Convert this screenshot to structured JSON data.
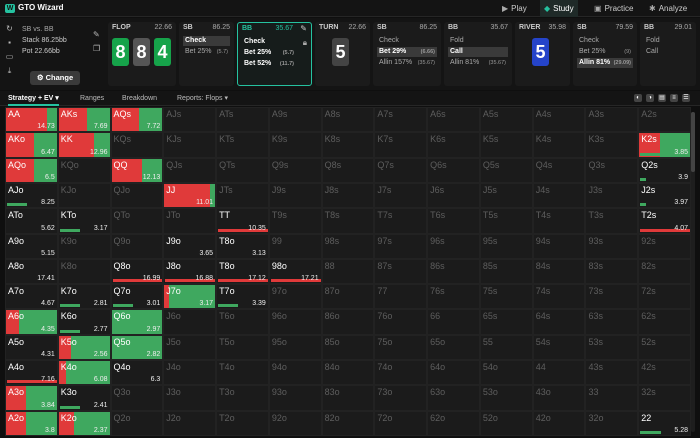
{
  "app": {
    "title": "GTO Wizard"
  },
  "nav": {
    "play": "Play",
    "study": "Study",
    "practice": "Practice",
    "analyze": "Analyze"
  },
  "player": {
    "line1": "SB vs. BB",
    "stack": "Stack 86.25bb",
    "pot": "Pot 22.66bb",
    "change": "Change"
  },
  "panels": {
    "flop": {
      "title": "FLOP",
      "pot": "22.66",
      "cards": [
        "8",
        "8",
        "4"
      ]
    },
    "sb1": {
      "title": "SB",
      "pot": "86.25",
      "actions": [
        {
          "label": "Check",
          "amt": ""
        },
        {
          "label": "Bet 25%",
          "amt": "(5.7)"
        }
      ]
    },
    "bb1": {
      "title": "BB",
      "pot": "35.67",
      "actions": [
        {
          "label": "Check",
          "amt": ""
        },
        {
          "label": "Bet 25%",
          "amt": "(5.7)"
        },
        {
          "label": "Bet 52%",
          "amt": "(11.7)"
        }
      ]
    },
    "turn": {
      "title": "TURN",
      "pot": "22.66",
      "card": "5"
    },
    "sb2": {
      "title": "SB",
      "pot": "86.25",
      "actions": [
        {
          "label": "Check",
          "amt": ""
        },
        {
          "label": "Bet 29%",
          "amt": "(6.66)"
        },
        {
          "label": "Allin 157%",
          "amt": "(35.67)"
        }
      ]
    },
    "bb2": {
      "title": "BB",
      "pot": "35.67",
      "actions": [
        {
          "label": "Fold",
          "amt": ""
        },
        {
          "label": "Call",
          "amt": ""
        },
        {
          "label": "Allin 81%",
          "amt": "(35.67)"
        }
      ]
    },
    "river": {
      "title": "RIVER",
      "pot": "35.98",
      "card": "5"
    },
    "sb3": {
      "title": "SB",
      "pot": "79.59",
      "actions": [
        {
          "label": "Check",
          "amt": ""
        },
        {
          "label": "Bet 25%",
          "amt": "(9)"
        },
        {
          "label": "Allin 81%",
          "amt": "(29.09)"
        }
      ]
    },
    "bb3": {
      "title": "BB",
      "pot": "29.01",
      "actions": [
        {
          "label": "Fold",
          "amt": ""
        },
        {
          "label": "Call",
          "amt": ""
        }
      ]
    }
  },
  "tabs": {
    "strategy": "Strategy + EV",
    "ranges": "Ranges",
    "breakdown": "Breakdown",
    "reports": "Reports: Flops"
  },
  "colors": {
    "red": "#e03a3a",
    "green": "#3fa85f",
    "accent": "#25c2a0"
  },
  "grid": {
    "rows": [
      [
        {
          "n": "AA",
          "v": "14.73",
          "r": 0.8,
          "g": 0.2,
          "b": 0
        },
        {
          "n": "AKs",
          "v": "7.69",
          "r": 0.55,
          "g": 0.45,
          "b": 0
        },
        {
          "n": "AQs",
          "v": "7.72",
          "r": 0.55,
          "g": 0.45,
          "b": 0
        },
        {
          "n": "AJs"
        },
        {
          "n": "ATs"
        },
        {
          "n": "A9s"
        },
        {
          "n": "A8s"
        },
        {
          "n": "A7s"
        },
        {
          "n": "A6s"
        },
        {
          "n": "A5s"
        },
        {
          "n": "A4s"
        },
        {
          "n": "A3s"
        },
        {
          "n": "A2s"
        }
      ],
      [
        {
          "n": "AKo",
          "v": "6.47",
          "r": 0.55,
          "g": 0.45,
          "b": 0
        },
        {
          "n": "KK",
          "v": "12.96",
          "r": 0.7,
          "g": 0.3,
          "b": 0
        },
        {
          "n": "KQs"
        },
        {
          "n": "KJs"
        },
        {
          "n": "KTs"
        },
        {
          "n": "K9s"
        },
        {
          "n": "K8s"
        },
        {
          "n": "K7s"
        },
        {
          "n": "K6s"
        },
        {
          "n": "K5s"
        },
        {
          "n": "K4s"
        },
        {
          "n": "K3s"
        },
        {
          "n": "K2s",
          "v": "3.85",
          "r": 0.4,
          "g": 0.6,
          "b": 1
        }
      ],
      [
        {
          "n": "AQo",
          "v": "6.5",
          "r": 0.55,
          "g": 0.45,
          "b": 0
        },
        {
          "n": "KQo"
        },
        {
          "n": "QQ",
          "v": "12.13",
          "r": 0.6,
          "g": 0.4,
          "b": 0
        },
        {
          "n": "QJs"
        },
        {
          "n": "QTs"
        },
        {
          "n": "Q9s"
        },
        {
          "n": "Q8s"
        },
        {
          "n": "Q7s"
        },
        {
          "n": "Q6s"
        },
        {
          "n": "Q5s"
        },
        {
          "n": "Q4s"
        },
        {
          "n": "Q3s"
        },
        {
          "n": "Q2s",
          "v": "3.9",
          "r": 0,
          "g": 0,
          "b": 0.3
        }
      ],
      [
        {
          "n": "AJo",
          "v": "8.25",
          "r": 0,
          "g": 0,
          "b": 1
        },
        {
          "n": "KJo"
        },
        {
          "n": "QJo"
        },
        {
          "n": "JJ",
          "v": "11.01",
          "r": 0.9,
          "g": 0.1,
          "b": 0
        },
        {
          "n": "JTs"
        },
        {
          "n": "J9s"
        },
        {
          "n": "J8s"
        },
        {
          "n": "J7s"
        },
        {
          "n": "J6s"
        },
        {
          "n": "J5s"
        },
        {
          "n": "J4s"
        },
        {
          "n": "J3s"
        },
        {
          "n": "J2s",
          "v": "3.97",
          "r": 0,
          "g": 0,
          "b": 0.3
        }
      ],
      [
        {
          "n": "ATo",
          "v": "5.62"
        },
        {
          "n": "KTo",
          "v": "3.17",
          "r": 0,
          "g": 0,
          "b": 1
        },
        {
          "n": "QTo"
        },
        {
          "n": "JTo"
        },
        {
          "n": "TT",
          "v": "10.35",
          "r": 0,
          "g": 0,
          "b": 1,
          "bc": "red"
        },
        {
          "n": "T9s"
        },
        {
          "n": "T8s"
        },
        {
          "n": "T7s"
        },
        {
          "n": "T6s"
        },
        {
          "n": "T5s"
        },
        {
          "n": "T4s"
        },
        {
          "n": "T3s"
        },
        {
          "n": "T2s",
          "v": "4.07",
          "r": 0,
          "g": 0,
          "b": 1,
          "bc": "red"
        }
      ],
      [
        {
          "n": "A9o",
          "v": "5.15"
        },
        {
          "n": "K9o"
        },
        {
          "n": "Q9o"
        },
        {
          "n": "J9o",
          "v": "3.65"
        },
        {
          "n": "T8o",
          "v": "3.13"
        },
        {
          "n": "99"
        },
        {
          "n": "98s"
        },
        {
          "n": "97s"
        },
        {
          "n": "96s"
        },
        {
          "n": "95s"
        },
        {
          "n": "94s"
        },
        {
          "n": "93s"
        },
        {
          "n": "92s"
        }
      ],
      [
        {
          "n": "A8o",
          "v": "17.41"
        },
        {
          "n": "K8o"
        },
        {
          "n": "Q8o",
          "v": "16.99",
          "r": 0,
          "g": 0,
          "b": 1,
          "bc": "red"
        },
        {
          "n": "J8o",
          "v": "16.88",
          "r": 0,
          "g": 0,
          "b": 1,
          "bc": "red"
        },
        {
          "n": "T8o",
          "v": "17.12",
          "r": 0,
          "g": 0,
          "b": 1,
          "bc": "red"
        },
        {
          "n": "98o",
          "v": "17.21",
          "r": 0,
          "g": 0,
          "b": 1,
          "bc": "red"
        },
        {
          "n": "88"
        },
        {
          "n": "87s"
        },
        {
          "n": "86s"
        },
        {
          "n": "85s"
        },
        {
          "n": "84s"
        },
        {
          "n": "83s"
        },
        {
          "n": "82s"
        }
      ],
      [
        {
          "n": "A7o",
          "v": "4.67"
        },
        {
          "n": "K7o",
          "v": "2.81",
          "r": 0,
          "g": 0,
          "b": 1
        },
        {
          "n": "Q7o",
          "v": "3.01",
          "r": 0,
          "g": 0,
          "b": 1
        },
        {
          "n": "J7o",
          "v": "3.17",
          "r": 0.1,
          "g": 0.9,
          "b": 0
        },
        {
          "n": "T7o",
          "v": "3.39",
          "r": 0,
          "g": 0,
          "b": 1
        },
        {
          "n": "97o"
        },
        {
          "n": "87o"
        },
        {
          "n": "77"
        },
        {
          "n": "76s"
        },
        {
          "n": "75s"
        },
        {
          "n": "74s"
        },
        {
          "n": "73s"
        },
        {
          "n": "72s"
        }
      ],
      [
        {
          "n": "A6o",
          "v": "4.35",
          "r": 0.25,
          "g": 0.75,
          "b": 0
        },
        {
          "n": "K6o",
          "v": "2.77",
          "r": 0,
          "g": 0,
          "b": 1
        },
        {
          "n": "Q6o",
          "v": "2.97",
          "r": 0,
          "g": 1,
          "b": 0
        },
        {
          "n": "J6o"
        },
        {
          "n": "T6o"
        },
        {
          "n": "96o"
        },
        {
          "n": "86o"
        },
        {
          "n": "76o"
        },
        {
          "n": "66"
        },
        {
          "n": "65s"
        },
        {
          "n": "64s"
        },
        {
          "n": "63s"
        },
        {
          "n": "62s"
        }
      ],
      [
        {
          "n": "A5o",
          "v": "4.31"
        },
        {
          "n": "K5o",
          "v": "2.56",
          "r": 0.25,
          "g": 0.75,
          "b": 0
        },
        {
          "n": "Q5o",
          "v": "2.82",
          "r": 0,
          "g": 1,
          "b": 0
        },
        {
          "n": "J5o"
        },
        {
          "n": "T5o"
        },
        {
          "n": "95o"
        },
        {
          "n": "85o"
        },
        {
          "n": "75o"
        },
        {
          "n": "65o"
        },
        {
          "n": "55"
        },
        {
          "n": "54s"
        },
        {
          "n": "53s"
        },
        {
          "n": "52s"
        }
      ],
      [
        {
          "n": "A4o",
          "v": "7.16",
          "r": 0,
          "g": 0,
          "b": 1,
          "bc": "red"
        },
        {
          "n": "K4o",
          "v": "6.08",
          "r": 0.15,
          "g": 0.85,
          "b": 0
        },
        {
          "n": "Q4o",
          "v": "6.3"
        },
        {
          "n": "J4o"
        },
        {
          "n": "T4o"
        },
        {
          "n": "94o"
        },
        {
          "n": "84o"
        },
        {
          "n": "74o"
        },
        {
          "n": "64o"
        },
        {
          "n": "54o"
        },
        {
          "n": "44"
        },
        {
          "n": "43s"
        },
        {
          "n": "42s"
        }
      ],
      [
        {
          "n": "A3o",
          "v": "3.84",
          "r": 0.4,
          "g": 0.6,
          "b": 0
        },
        {
          "n": "K3o",
          "v": "2.41",
          "r": 0,
          "g": 0,
          "b": 1
        },
        {
          "n": "Q3o"
        },
        {
          "n": "J3o"
        },
        {
          "n": "T3o"
        },
        {
          "n": "93o"
        },
        {
          "n": "83o"
        },
        {
          "n": "73o"
        },
        {
          "n": "63o"
        },
        {
          "n": "53o"
        },
        {
          "n": "43o"
        },
        {
          "n": "33"
        },
        {
          "n": "32s"
        }
      ],
      [
        {
          "n": "A2o",
          "v": "3.8",
          "r": 0.4,
          "g": 0.6,
          "b": 0
        },
        {
          "n": "K2o",
          "v": "2.37",
          "r": 0.3,
          "g": 0.7,
          "b": 0
        },
        {
          "n": "Q2o"
        },
        {
          "n": "J2o"
        },
        {
          "n": "T2o"
        },
        {
          "n": "92o"
        },
        {
          "n": "82o"
        },
        {
          "n": "72o"
        },
        {
          "n": "62o"
        },
        {
          "n": "52o"
        },
        {
          "n": "42o"
        },
        {
          "n": "32o"
        },
        {
          "n": "22",
          "v": "5.28",
          "r": 0,
          "g": 0,
          "b": 1
        }
      ]
    ]
  }
}
